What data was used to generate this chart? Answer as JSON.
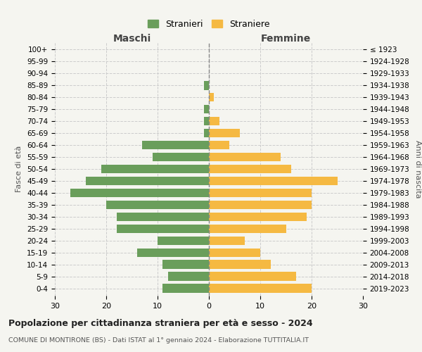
{
  "age_groups": [
    "0-4",
    "5-9",
    "10-14",
    "15-19",
    "20-24",
    "25-29",
    "30-34",
    "35-39",
    "40-44",
    "45-49",
    "50-54",
    "55-59",
    "60-64",
    "65-69",
    "70-74",
    "75-79",
    "80-84",
    "85-89",
    "90-94",
    "95-99",
    "100+"
  ],
  "birth_years": [
    "2019-2023",
    "2014-2018",
    "2009-2013",
    "2004-2008",
    "1999-2003",
    "1994-1998",
    "1989-1993",
    "1984-1988",
    "1979-1983",
    "1974-1978",
    "1969-1973",
    "1964-1968",
    "1959-1963",
    "1954-1958",
    "1949-1953",
    "1944-1948",
    "1939-1943",
    "1934-1938",
    "1929-1933",
    "1924-1928",
    "≤ 1923"
  ],
  "males": [
    9,
    8,
    9,
    14,
    10,
    18,
    18,
    20,
    27,
    24,
    21,
    11,
    13,
    1,
    1,
    1,
    0,
    1,
    0,
    0,
    0
  ],
  "females": [
    20,
    17,
    12,
    10,
    7,
    15,
    19,
    20,
    20,
    25,
    16,
    14,
    4,
    6,
    2,
    0,
    1,
    0,
    0,
    0,
    0
  ],
  "male_color": "#6a9e5b",
  "female_color": "#f5b942",
  "background_color": "#f5f5f0",
  "grid_color": "#cccccc",
  "title": "Popolazione per cittadinanza straniera per età e sesso - 2024",
  "subtitle": "COMUNE DI MONTIRONE (BS) - Dati ISTAT al 1° gennaio 2024 - Elaborazione TUTTITALIA.IT",
  "xlabel_left": "Maschi",
  "xlabel_right": "Femmine",
  "ylabel_left": "Fasce di età",
  "ylabel_right": "Anni di nascita",
  "legend_stranieri": "Stranieri",
  "legend_straniere": "Straniere",
  "xlim": 30
}
